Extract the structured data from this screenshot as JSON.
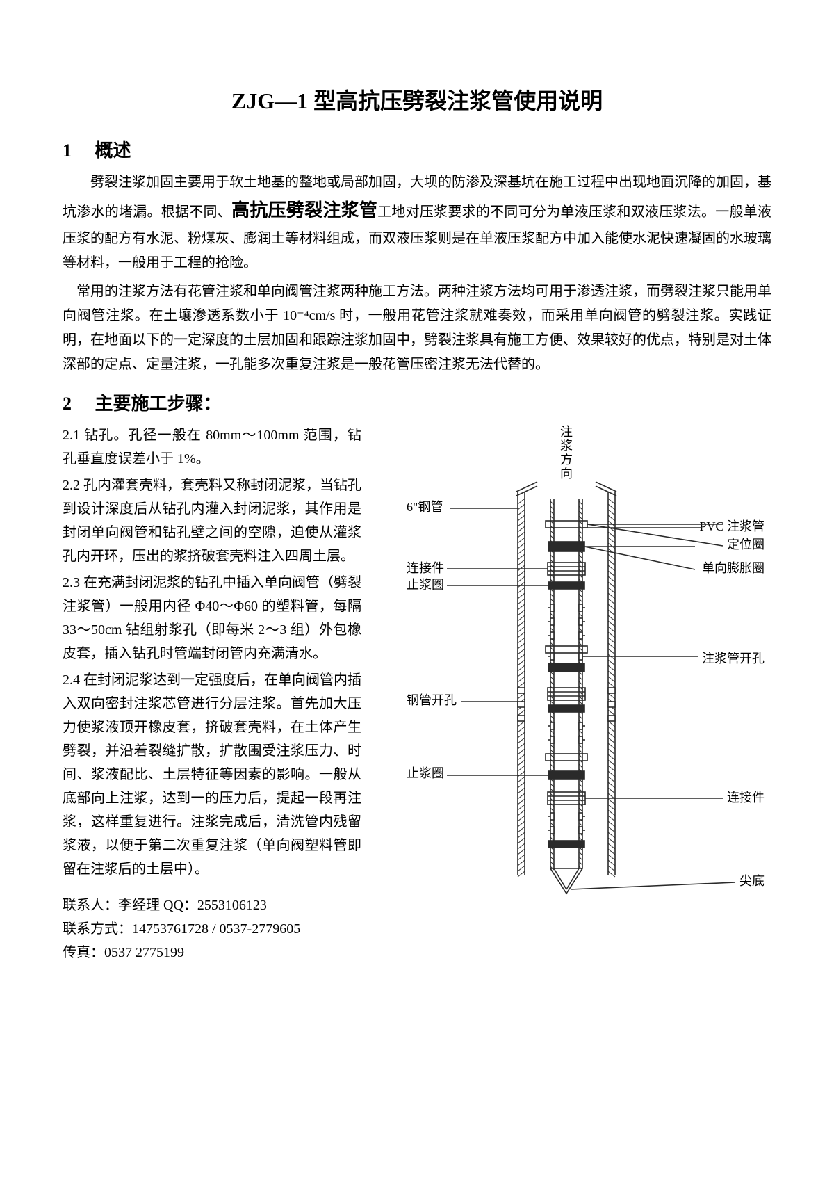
{
  "title": "ZJG—1 型高抗压劈裂注浆管使用说明",
  "section1": {
    "num": "1",
    "heading": "概述",
    "para1_part1": "劈裂注浆加固主要用于软土地基的整地或局部加固，大坝的防渗及深基坑在施工过程中出现地面沉降的加固，基坑渗水的堵漏。根据不同、",
    "para1_emphasis": "高抗压劈裂注浆管",
    "para1_part2": "工地对压浆要求的不同可分为单液压浆和双液压浆法。一般单液压浆的配方有水泥、粉煤灰、膨润土等材料组成，而双液压浆则是在单液压浆配方中加入能使水泥快速凝固的水玻璃等材料，一般用于工程的抢险。",
    "para2": "常用的注浆方法有花管注浆和单向阀管注浆两种施工方法。两种注浆方法均可用于渗透注浆，而劈裂注浆只能用单向阀管注浆。在土壤渗透系数小于 10⁻⁴cm/s 时，一般用花管注浆就难奏效，而采用单向阀管的劈裂注浆。实践证明，在地面以下的一定深度的土层加固和跟踪注浆加固中，劈裂注浆具有施工方便、效果较好的优点，特别是对土体深部的定点、定量注浆，一孔能多次重复注浆是一般花管压密注浆无法代替的。"
  },
  "section2": {
    "num": "2",
    "heading": "主要施工步骤：",
    "step1": "2.1 钻孔。孔径一般在 80mm～100mm 范围，钻孔垂直度误差小于 1%。",
    "step2": "2.2 孔内灌套壳料，套壳料又称封闭泥浆，当钻孔到设计深度后从钻孔内灌入封闭泥浆，其作用是封闭单向阀管和钻孔壁之间的空隙，迫使从灌浆孔内开环，压出的浆挤破套壳料注入四周土层。",
    "step3": "2.3 在充满封闭泥浆的钻孔中插入单向阀管（劈裂注浆管）一般用内径 Φ40～Φ60 的塑料管，每隔 33～50cm 钻组射浆孔（即每米 2～3 组）外包橡皮套，插入钻孔时管端封闭管内充满清水。",
    "step4": "2.4 在封闭泥浆达到一定强度后，在单向阀管内插入双向密封注浆芯管进行分层注浆。首先加大压力使浆液顶开橡皮套，挤破套壳料，在土体产生劈裂，并沿着裂缝扩散，扩散围受注浆压力、时间、浆液配比、土层特征等因素的影响。一般从底部向上注浆，达到一的压力后，提起一段再注浆，这样重复进行。注浆完成后，清洗管内残留浆液，以便于第二次重复注浆（单向阀塑料管即留在注浆后的土层中）。"
  },
  "contact": {
    "line1_label": "联系人：",
    "line1_value": "李经理  QQ：2553106123",
    "line2_label": "联系方式：",
    "line2_value": "14753761728 / 0537-2779605",
    "line3_label": "传真：",
    "line3_value": "0537 2775199"
  },
  "diagram": {
    "labels": {
      "top": "注浆方向",
      "steel_pipe": "6\"钢管",
      "connector": "连接件",
      "stop_ring": "止浆圈",
      "pipe_hole": "钢管开孔",
      "stop_ring2": "止浆圈",
      "pvc_pipe": "PVC 注浆管",
      "locator": "定位圈",
      "expand_ring": "单向膨胀圈",
      "grout_hole": "注浆管开孔",
      "connector2": "连接件",
      "tip": "尖底"
    },
    "colors": {
      "line": "#2a2a2a",
      "hatch": "#2a2a2a",
      "text": "#000000"
    },
    "stroke_width": 1.6,
    "font_size": 18
  }
}
